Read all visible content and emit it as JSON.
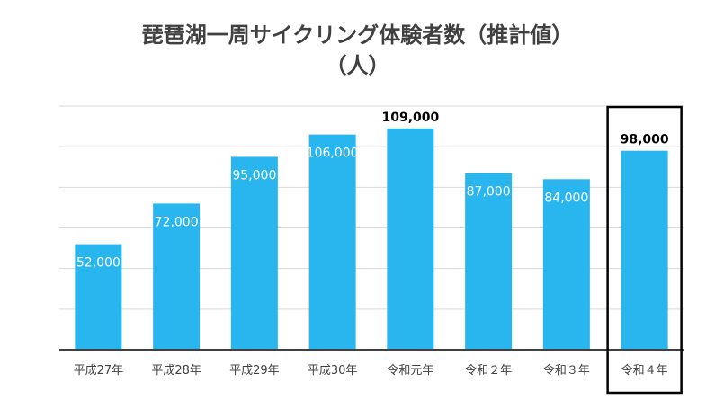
{
  "chart_data": {
    "type": "bar",
    "title_line1": "琵琶湖一周サイクリング体験者数（推計値）",
    "title_line2": "（人）",
    "categories": [
      "平成27年",
      "平成28年",
      "平成29年",
      "平成30年",
      "令和元年",
      "令和２年",
      "令和３年",
      "令和４年"
    ],
    "values": [
      52000,
      72000,
      95000,
      106000,
      109000,
      87000,
      84000,
      98000
    ],
    "value_labels": [
      "52,000",
      "72,000",
      "95,000",
      "106,000",
      "109,000",
      "87,000",
      "84,000",
      "98,000"
    ],
    "bold_label_indices": [
      4,
      7
    ],
    "highlight_index": 7,
    "ylim": [
      0,
      120000
    ],
    "grid_step": 20000,
    "grid": true,
    "colors": {
      "bar": "#29B6EE",
      "grid": "#d9d9d9",
      "axis": "#404040",
      "highlight_border": "#000000"
    }
  }
}
